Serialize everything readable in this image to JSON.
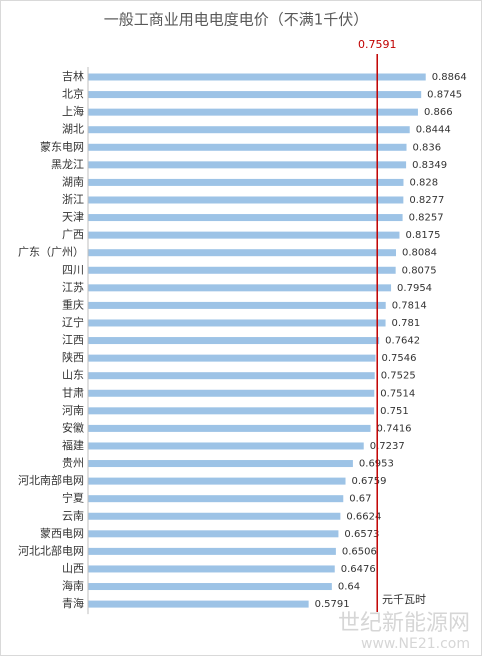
{
  "chart_data": {
    "type": "barh",
    "title": "一般工商业用电电度电价（不满1千伏）",
    "unit_label": "元千瓦时",
    "categories": [
      "吉林",
      "北京",
      "上海",
      "湖北",
      "蒙东电网",
      "黑龙江",
      "湖南",
      "浙江",
      "天津",
      "广西",
      "广东（广州）",
      "四川",
      "江苏",
      "重庆",
      "辽宁",
      "江西",
      "陕西",
      "山东",
      "甘肃",
      "河南",
      "安徽",
      "福建",
      "贵州",
      "河北南部电网",
      "宁夏",
      "云南",
      "蒙西电网",
      "河北北部电网",
      "山西",
      "海南",
      "青海"
    ],
    "values": [
      0.8864,
      0.8745,
      0.866,
      0.8444,
      0.836,
      0.8349,
      0.828,
      0.8277,
      0.8257,
      0.8175,
      0.8084,
      0.8075,
      0.7954,
      0.7814,
      0.781,
      0.7642,
      0.7546,
      0.7525,
      0.7514,
      0.751,
      0.7416,
      0.7237,
      0.6953,
      0.6759,
      0.67,
      0.6624,
      0.6573,
      0.6506,
      0.6476,
      0.64,
      0.5791
    ],
    "color": "#9dc3e6",
    "xlim": [
      0,
      1
    ],
    "reference_line": {
      "value": 0.7591,
      "color": "#c00000"
    },
    "watermark": [
      "世纪新能源网",
      "www.NE21.com"
    ]
  }
}
